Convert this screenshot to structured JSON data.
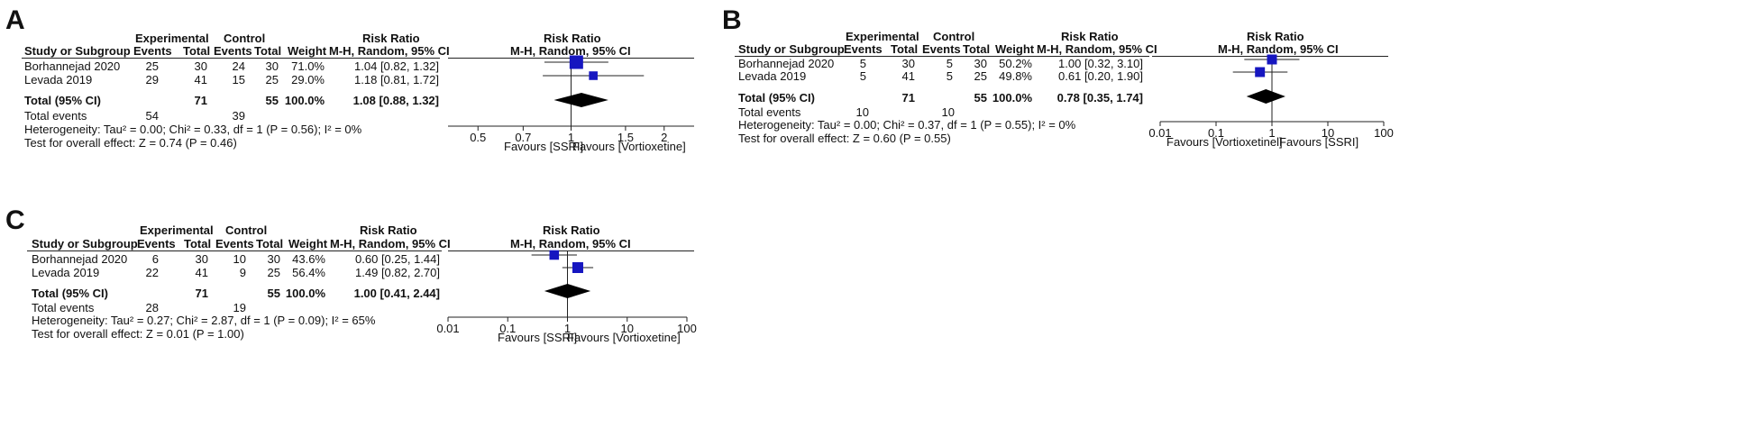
{
  "colors": {
    "box": "#1616c0",
    "diamond": "#000000",
    "line": "#222222",
    "text": "#111111"
  },
  "chart_data": [
    {
      "panel": "A",
      "type": "forest",
      "headers": {
        "study": "Study or Subgroup",
        "experimental": "Experimental",
        "control": "Control",
        "events": "Events",
        "total": "Total",
        "weight": "Weight",
        "risk_ratio": "Risk Ratio",
        "method": "M-H, Random, 95% CI"
      },
      "studies": [
        {
          "name": "Borhannejad 2020",
          "exp_events": "25",
          "exp_total": "30",
          "ctl_events": "24",
          "ctl_total": "30",
          "weight_label": "71.0%",
          "ci_label": "1.04 [0.82, 1.32]",
          "weight": 71.0,
          "rr": 1.04,
          "lo": 0.82,
          "hi": 1.32
        },
        {
          "name": "Levada 2019",
          "exp_events": "29",
          "exp_total": "41",
          "ctl_events": "15",
          "ctl_total": "25",
          "weight_label": "29.0%",
          "ci_label": "1.18 [0.81, 1.72]",
          "weight": 29.0,
          "rr": 1.18,
          "lo": 0.81,
          "hi": 1.72
        }
      ],
      "total": {
        "label": "Total (95% CI)",
        "exp_total": "71",
        "ctl_total": "55",
        "weight_label": "100.0%",
        "ci_label": "1.08 [0.88, 1.32]",
        "rr": 1.08,
        "lo": 0.88,
        "hi": 1.32
      },
      "total_events": {
        "label": "Total events",
        "exp": "54",
        "ctl": "39"
      },
      "heterogeneity": "Heterogeneity: Tau² = 0.00; Chi² = 0.33, df = 1 (P = 0.56); I² = 0%",
      "overall_effect": "Test for overall effect: Z = 0.74 (P = 0.46)",
      "axis": {
        "scale": "log",
        "range": [
          0.4,
          2.5
        ],
        "ticks": [
          0.5,
          0.7,
          1,
          1.5,
          2
        ],
        "tick_labels": [
          "0.5",
          "0.7",
          "1",
          "1.5",
          "2"
        ]
      },
      "favours_left": "Favours [SSRI]",
      "favours_right": "Favours [Vortioxetine]"
    },
    {
      "panel": "B",
      "type": "forest",
      "headers": {
        "study": "Study or Subgroup",
        "experimental": "Experimental",
        "control": "Control",
        "events": "Events",
        "total": "Total",
        "weight": "Weight",
        "risk_ratio": "Risk Ratio",
        "method": "M-H, Random, 95% CI"
      },
      "studies": [
        {
          "name": "Borhannejad 2020",
          "exp_events": "5",
          "exp_total": "30",
          "ctl_events": "5",
          "ctl_total": "30",
          "weight_label": "50.2%",
          "ci_label": "1.00 [0.32, 3.10]",
          "weight": 50.2,
          "rr": 1.0,
          "lo": 0.32,
          "hi": 3.1
        },
        {
          "name": "Levada 2019",
          "exp_events": "5",
          "exp_total": "41",
          "ctl_events": "5",
          "ctl_total": "25",
          "weight_label": "49.8%",
          "ci_label": "0.61 [0.20, 1.90]",
          "weight": 49.8,
          "rr": 0.61,
          "lo": 0.2,
          "hi": 1.9
        }
      ],
      "total": {
        "label": "Total (95% CI)",
        "exp_total": "71",
        "ctl_total": "55",
        "weight_label": "100.0%",
        "ci_label": "0.78 [0.35, 1.74]",
        "rr": 0.78,
        "lo": 0.35,
        "hi": 1.74
      },
      "total_events": {
        "label": "Total events",
        "exp": "10",
        "ctl": "10"
      },
      "heterogeneity": "Heterogeneity: Tau² = 0.00; Chi² = 0.37, df = 1 (P = 0.55); I² = 0%",
      "overall_effect": "Test for overall effect: Z = 0.60 (P = 0.55)",
      "axis": {
        "scale": "log",
        "range": [
          0.01,
          100
        ],
        "ticks": [
          0.01,
          0.1,
          1,
          10,
          100
        ],
        "tick_labels": [
          "0.01",
          "0.1",
          "1",
          "10",
          "100"
        ]
      },
      "favours_left": "Favours [Vortioxetinel]",
      "favours_right": "Favours [SSRI]"
    },
    {
      "panel": "C",
      "type": "forest",
      "headers": {
        "study": "Study or Subgroup",
        "experimental": "Experimental",
        "control": "Control",
        "events": "Events",
        "total": "Total",
        "weight": "Weight",
        "risk_ratio": "Risk Ratio",
        "method": "M-H, Random, 95% CI"
      },
      "studies": [
        {
          "name": "Borhannejad 2020",
          "exp_events": "6",
          "exp_total": "30",
          "ctl_events": "10",
          "ctl_total": "30",
          "weight_label": "43.6%",
          "ci_label": "0.60 [0.25, 1.44]",
          "weight": 43.6,
          "rr": 0.6,
          "lo": 0.25,
          "hi": 1.44
        },
        {
          "name": "Levada 2019",
          "exp_events": "22",
          "exp_total": "41",
          "ctl_events": "9",
          "ctl_total": "25",
          "weight_label": "56.4%",
          "ci_label": "1.49 [0.82, 2.70]",
          "weight": 56.4,
          "rr": 1.49,
          "lo": 0.82,
          "hi": 2.7
        }
      ],
      "total": {
        "label": "Total (95% CI)",
        "exp_total": "71",
        "ctl_total": "55",
        "weight_label": "100.0%",
        "ci_label": "1.00 [0.41, 2.44]",
        "rr": 1.0,
        "lo": 0.41,
        "hi": 2.44
      },
      "total_events": {
        "label": "Total events",
        "exp": "28",
        "ctl": "19"
      },
      "heterogeneity": "Heterogeneity: Tau² = 0.27; Chi² = 2.87, df = 1 (P = 0.09); I² = 65%",
      "overall_effect": "Test for overall effect: Z = 0.01 (P = 1.00)",
      "axis": {
        "scale": "log",
        "range": [
          0.01,
          100
        ],
        "ticks": [
          0.01,
          0.1,
          1,
          10,
          100
        ],
        "tick_labels": [
          "0.01",
          "0.1",
          "1",
          "10",
          "100"
        ]
      },
      "favours_left": "Favours [SSRI]",
      "favours_right": "Favours [Vortioxetine]"
    }
  ]
}
